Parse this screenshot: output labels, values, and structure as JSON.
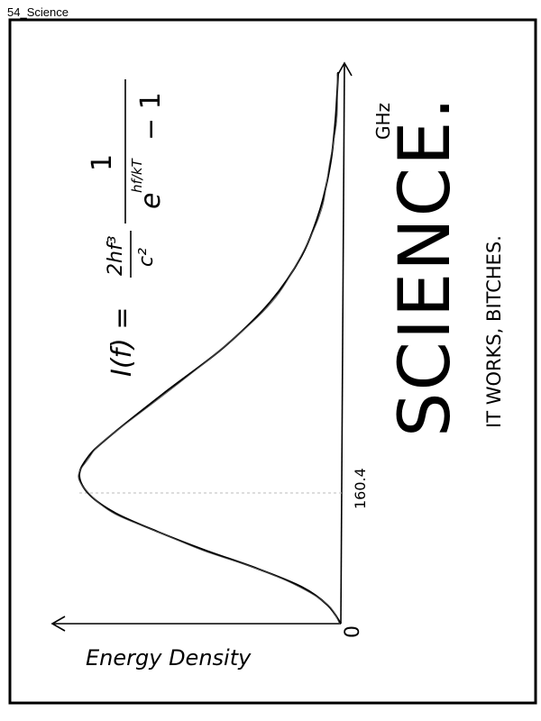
{
  "caption": "54_Science",
  "panel": {
    "x_axis_label": "Energy Density",
    "y_axis_label": "GHz",
    "origin_label": "0",
    "peak_label": "160.4",
    "formula": {
      "lhs": "I(f) =",
      "factor_num": "2hf³",
      "factor_den": "c²",
      "frac_num": "1",
      "exp_base": "e",
      "exp_power": "hf/kT",
      "minus": "− 1"
    },
    "headline": "SCIENCE.",
    "tagline": "IT WORKS, BITCHES."
  },
  "chart_data": {
    "type": "line",
    "xlabel": "GHz",
    "ylabel": "Energy Density",
    "annotations": [
      "0",
      "160.4"
    ],
    "series": [
      {
        "x": [
          0,
          20,
          40,
          60,
          80,
          100,
          120,
          140,
          160.4,
          180,
          200,
          250,
          300,
          350,
          400,
          450,
          500,
          550,
          600
        ],
        "y": [
          0,
          0.05,
          0.15,
          0.32,
          0.52,
          0.7,
          0.86,
          0.96,
          1.0,
          0.97,
          0.9,
          0.68,
          0.45,
          0.27,
          0.15,
          0.08,
          0.04,
          0.02,
          0.01
        ]
      }
    ]
  }
}
